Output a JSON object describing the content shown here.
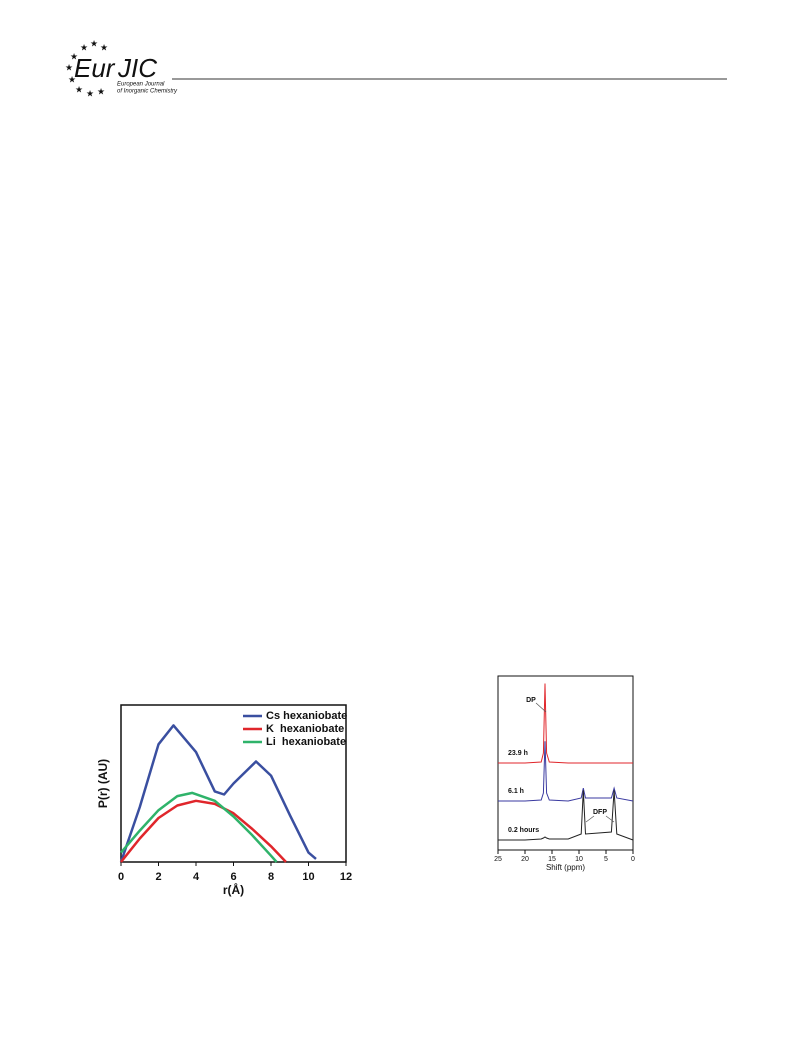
{
  "header": {
    "logo_main": "Eur",
    "logo_accent": "JIC",
    "logo_line1": "European Journal",
    "logo_line2": "of Inorganic Chemistry"
  },
  "chart_data": [
    {
      "type": "line",
      "xlabel": "r(Å)",
      "ylabel": "P(r) (AU)",
      "xlim": [
        0,
        12
      ],
      "xticks": [
        0,
        2,
        4,
        6,
        8,
        10,
        12
      ],
      "ylim": [
        0,
        1
      ],
      "legend": "upper right",
      "series": [
        {
          "name": "Cs hexaniobate",
          "color": "#3a4fa0",
          "x": [
            0,
            1,
            2,
            2.8,
            4,
            5,
            5.5,
            6,
            7.2,
            8,
            9,
            10,
            10.4
          ],
          "values": [
            0,
            0.35,
            0.75,
            0.87,
            0.7,
            0.45,
            0.43,
            0.5,
            0.64,
            0.55,
            0.3,
            0.06,
            0.02
          ]
        },
        {
          "name": "K  hexaniobate",
          "color": "#e0262b",
          "x": [
            0,
            1,
            2,
            3,
            4,
            5,
            6,
            7,
            8,
            8.8
          ],
          "values": [
            0,
            0.15,
            0.28,
            0.36,
            0.39,
            0.37,
            0.31,
            0.21,
            0.1,
            0
          ]
        },
        {
          "name": "Li  hexaniobate",
          "color": "#2fb36a",
          "x": [
            0,
            1,
            2,
            3,
            3.8,
            5,
            6,
            7,
            8,
            8.3
          ],
          "values": [
            0.06,
            0.2,
            0.33,
            0.42,
            0.44,
            0.39,
            0.29,
            0.17,
            0.04,
            0
          ]
        }
      ]
    },
    {
      "type": "spectra",
      "xlabel": "Shift (ppm)",
      "xlim": [
        25,
        0
      ],
      "xticks": [
        25,
        20,
        15,
        10,
        5,
        0
      ],
      "ylim": [
        0,
        175
      ],
      "annotations": [
        "DP",
        "DFP"
      ],
      "series": [
        {
          "name": "23.9 h",
          "color": "#e0262b",
          "x": [
            25,
            20,
            17,
            16.6,
            16.3,
            16.0,
            15.5,
            12,
            9.6,
            9.2,
            8.8,
            4,
            3.5,
            3,
            0
          ],
          "values": [
            0,
            0,
            1,
            10,
            80,
            10,
            1,
            0,
            0,
            0,
            0,
            0,
            0,
            0,
            0
          ]
        },
        {
          "name": "6.1 h",
          "color": "#3a3aa0",
          "x": [
            25,
            20,
            17,
            16.6,
            16.3,
            16.0,
            15.5,
            12,
            9.6,
            9.2,
            8.8,
            4,
            3.5,
            3,
            0
          ],
          "values": [
            0,
            0,
            1,
            8,
            60,
            8,
            1,
            0,
            3,
            13,
            3,
            3,
            13,
            3,
            0
          ]
        },
        {
          "name": "0.2 hours",
          "color": "#222222",
          "x": [
            25,
            20,
            17,
            16.6,
            16.3,
            16.0,
            15.5,
            12,
            9.6,
            9.2,
            8.8,
            4,
            3.5,
            3,
            0
          ],
          "values": [
            0,
            0,
            1,
            2,
            3,
            2,
            1,
            1,
            6,
            50,
            6,
            8,
            50,
            6,
            0
          ]
        }
      ]
    }
  ]
}
